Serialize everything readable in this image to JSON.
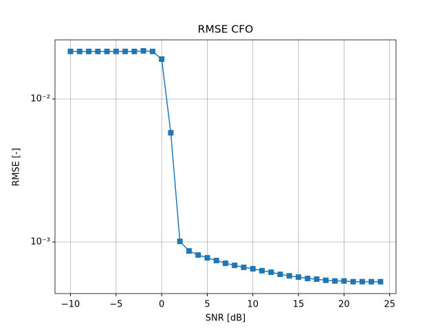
{
  "chart_data": {
    "type": "line",
    "title": "RMSE CFO",
    "xlabel": "SNR [dB]",
    "ylabel": "RMSE [-]",
    "x": [
      -10,
      -9,
      -8,
      -7,
      -6,
      -5,
      -4,
      -3,
      -2,
      -1,
      0,
      1,
      2,
      3,
      4,
      5,
      6,
      7,
      8,
      9,
      10,
      11,
      12,
      13,
      14,
      15,
      16,
      17,
      18,
      19,
      20,
      21,
      22,
      23,
      24
    ],
    "series": [
      {
        "color": "#1f77b4",
        "marker": "square",
        "values": [
          0.0215,
          0.0215,
          0.0215,
          0.0215,
          0.0215,
          0.0215,
          0.0215,
          0.0215,
          0.0217,
          0.0215,
          0.019,
          0.0058,
          0.00101,
          0.000866,
          0.000811,
          0.000775,
          0.000742,
          0.00071,
          0.000687,
          0.000665,
          0.00065,
          0.00063,
          0.000615,
          0.000594,
          0.00058,
          0.000568,
          0.000556,
          0.00055,
          0.00054,
          0.000534,
          0.000534,
          0.000528,
          0.000528,
          0.000528,
          0.000528
        ]
      }
    ],
    "xlim": [
      -11.7,
      25.7
    ],
    "xticks": [
      {
        "value": -10,
        "label": "−10"
      },
      {
        "value": -5,
        "label": "−5"
      },
      0,
      5,
      10,
      15,
      20,
      25
    ],
    "ylim": [
      0.000436,
      0.0259
    ],
    "yscale": "log",
    "yticks": [
      {
        "value": 0.001,
        "label": "10⁻³"
      },
      {
        "value": 0.01,
        "label": "10⁻²"
      }
    ],
    "grid": true
  }
}
